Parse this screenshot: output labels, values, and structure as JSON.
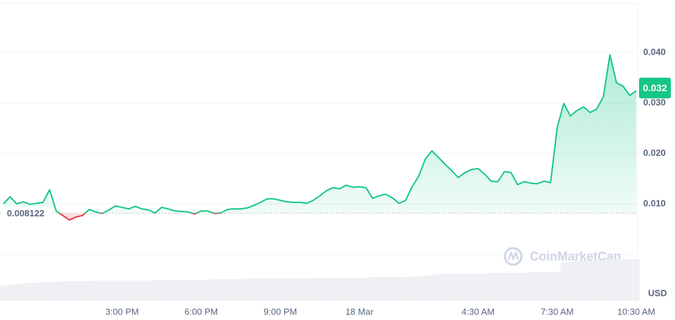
{
  "chart_data": {
    "type": "line",
    "categories": [
      null,
      null,
      null,
      null,
      null,
      null,
      null,
      null,
      null,
      null,
      null,
      null,
      null,
      null,
      null,
      null,
      null,
      null,
      "3:00 PM",
      null,
      null,
      null,
      null,
      null,
      null,
      null,
      null,
      null,
      null,
      null,
      "6:00 PM",
      null,
      null,
      null,
      null,
      null,
      null,
      null,
      null,
      null,
      null,
      null,
      "9:00 PM",
      null,
      null,
      null,
      null,
      null,
      null,
      null,
      null,
      null,
      null,
      null,
      "18 Mar",
      null,
      null,
      null,
      null,
      null,
      null,
      null,
      null,
      null,
      null,
      null,
      null,
      null,
      null,
      null,
      null,
      null,
      "4:30 AM",
      null,
      null,
      null,
      null,
      null,
      null,
      null,
      null,
      null,
      null,
      null,
      "7:30 AM",
      null,
      null,
      null,
      null,
      null,
      null,
      null,
      null,
      null,
      null,
      null,
      "10:30 AM"
    ],
    "series": [
      {
        "name": "Price",
        "color": "#16c784",
        "values": [
          0.01,
          0.0114,
          0.01,
          0.0104,
          0.0099,
          0.0101,
          0.0103,
          0.0128,
          0.0086,
          0.0077,
          0.0068,
          0.0074,
          0.0077,
          0.0089,
          0.0084,
          0.0081,
          0.0088,
          0.0096,
          0.0093,
          0.009,
          0.0095,
          0.009,
          0.0088,
          0.0082,
          0.0093,
          0.009,
          0.0086,
          0.0085,
          0.0084,
          0.008,
          0.0086,
          0.0086,
          0.0081,
          0.0082,
          0.0089,
          0.009,
          0.009,
          0.0092,
          0.0097,
          0.0103,
          0.011,
          0.011,
          0.0107,
          0.0104,
          0.0103,
          0.0103,
          0.0101,
          0.0107,
          0.0116,
          0.0126,
          0.0132,
          0.013,
          0.0137,
          0.0133,
          0.0134,
          0.0132,
          0.0111,
          0.0116,
          0.0119,
          0.0112,
          0.0101,
          0.0107,
          0.0134,
          0.0155,
          0.0189,
          0.0205,
          0.0192,
          0.0178,
          0.0166,
          0.0152,
          0.0162,
          0.0168,
          0.017,
          0.0159,
          0.0145,
          0.0144,
          0.0164,
          0.0162,
          0.0138,
          0.0144,
          0.0141,
          0.014,
          0.0145,
          0.0142,
          0.0251,
          0.0299,
          0.0274,
          0.0285,
          0.0292,
          0.0281,
          0.0288,
          0.0312,
          0.0395,
          0.034,
          0.0333,
          0.0315,
          0.0324
        ]
      }
    ],
    "volume": [
      22,
      23,
      24,
      25,
      26,
      26,
      27,
      27,
      27,
      28,
      28,
      28,
      28,
      28,
      29,
      29,
      29,
      29,
      29,
      29,
      29,
      29,
      29,
      30,
      30,
      30,
      30,
      30,
      30,
      30,
      30,
      30,
      31,
      31,
      31,
      31,
      31,
      32,
      32,
      32,
      32,
      32,
      32,
      32,
      32,
      32,
      32,
      33,
      33,
      33,
      33,
      33,
      33,
      33,
      33,
      33,
      34,
      34,
      34,
      34,
      34,
      34,
      35,
      35,
      36,
      37,
      38,
      39,
      39,
      39,
      39,
      39,
      39,
      39,
      40,
      40,
      40,
      40,
      40,
      40,
      41,
      41,
      41,
      41,
      42,
      55,
      56,
      57,
      58,
      58,
      59,
      59,
      60,
      60,
      60,
      60,
      60
    ],
    "down_color": "#ea3943",
    "baseline": 0.008122,
    "last_label": "0.032",
    "ylim": [
      0,
      0.0497
    ],
    "yticks": [
      {
        "value": 0.01,
        "label": "0.010"
      },
      {
        "value": 0.02,
        "label": "0.020"
      },
      {
        "value": 0.03,
        "label": "0.030"
      },
      {
        "value": 0.04,
        "label": "0.040"
      }
    ],
    "currency": "USD",
    "watermark": "CoinMarketCap",
    "grid": true
  }
}
